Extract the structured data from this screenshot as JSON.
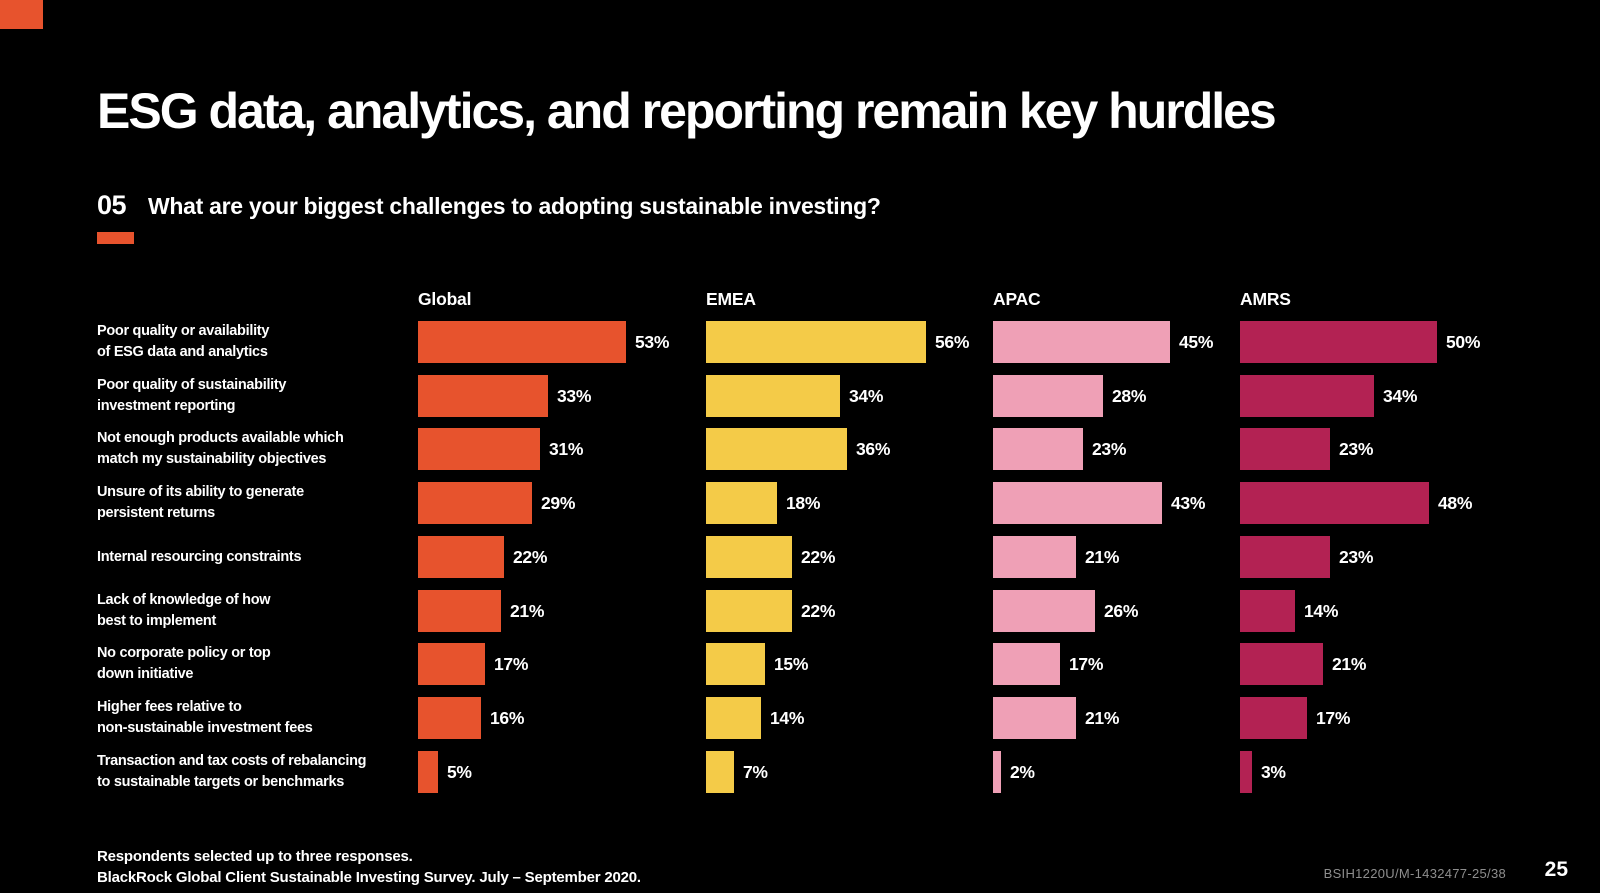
{
  "brand": {
    "accent_color": "#E7532D",
    "background_color": "#000000"
  },
  "title": "ESG data, analytics, and reporting remain key hurdles",
  "question": {
    "number": "05",
    "text": "What are your biggest challenges to adopting sustainable investing?"
  },
  "chart_data": {
    "type": "bar",
    "orientation": "horizontal",
    "value_suffix": "%",
    "xlim": [
      0,
      60
    ],
    "grid": false,
    "legend_position": "column-headers-top",
    "categories": [
      "Poor quality or availability\nof ESG data and analytics",
      "Poor quality of sustainability\ninvestment reporting",
      "Not enough products available which\nmatch my sustainability objectives",
      "Unsure of its ability to generate\npersistent returns",
      "Internal resourcing constraints",
      "Lack of knowledge of how\nbest to implement",
      "No corporate policy or top\ndown initiative",
      "Higher fees relative to\nnon-sustainable investment fees",
      "Transaction and tax costs of rebalancing\nto sustainable targets or benchmarks"
    ],
    "series": [
      {
        "name": "Global",
        "color": "#E7532D",
        "values": [
          53,
          33,
          31,
          29,
          22,
          21,
          17,
          16,
          5
        ]
      },
      {
        "name": "EMEA",
        "color": "#F4CB48",
        "values": [
          56,
          34,
          36,
          18,
          22,
          22,
          15,
          14,
          7
        ]
      },
      {
        "name": "APAC",
        "color": "#EFA0B6",
        "values": [
          45,
          28,
          23,
          43,
          21,
          26,
          17,
          21,
          2
        ]
      },
      {
        "name": "AMRS",
        "color": "#B32253",
        "values": [
          50,
          34,
          23,
          48,
          23,
          14,
          21,
          17,
          3
        ]
      }
    ]
  },
  "footer": {
    "line1": "Respondents selected up to three responses.",
    "line2": "BlackRock Global Client Sustainable Investing Survey. July – September 2020."
  },
  "meta": {
    "doc_code": "BSIH1220U/M-1432477-25/38",
    "page_number": "25"
  }
}
